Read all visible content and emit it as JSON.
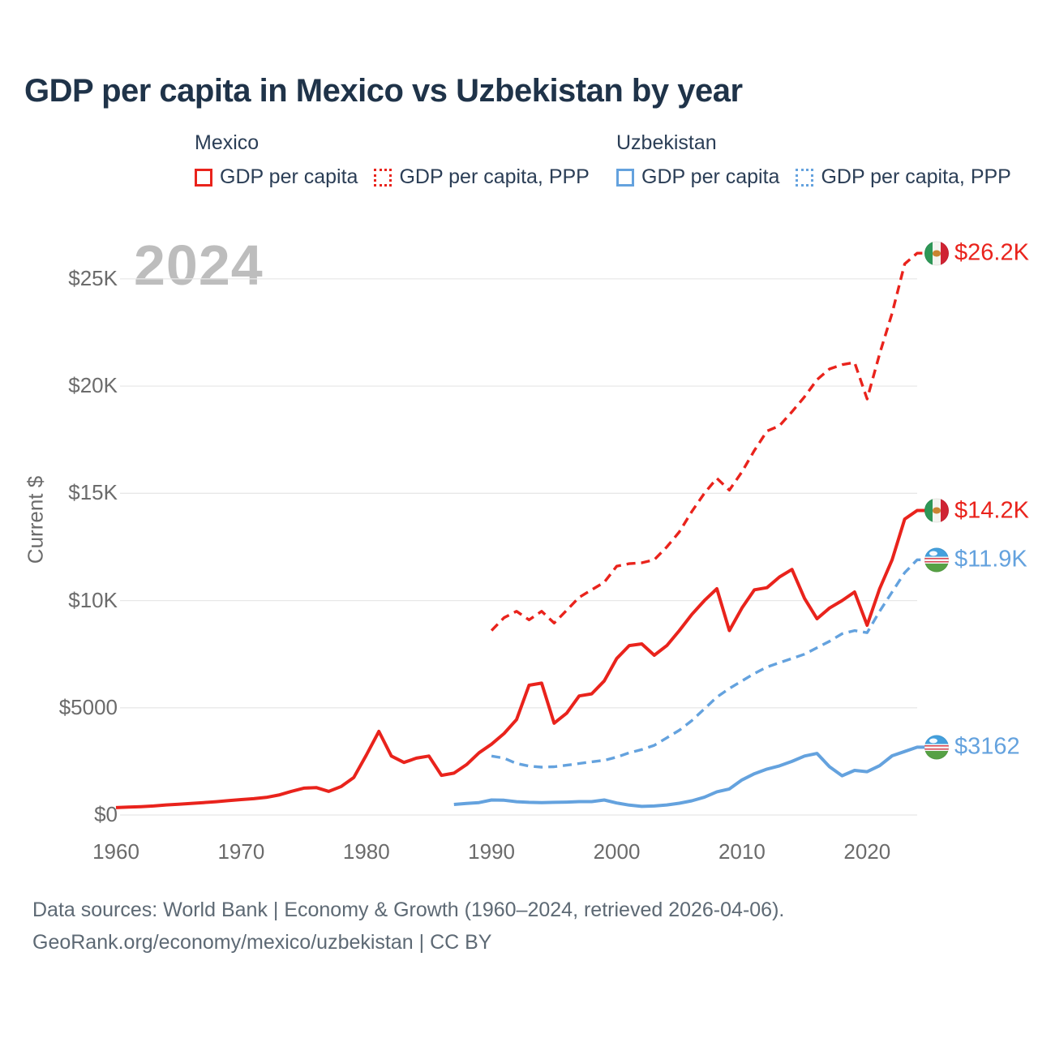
{
  "title": "GDP per capita in Mexico vs Uzbekistan by year",
  "watermark": "2024",
  "colors": {
    "mexico": "#e9231c",
    "uzbekistan": "#64a2de",
    "grid": "#e8e8e8",
    "title_text": "#1f3349",
    "legend_text": "#2b3e56",
    "axis_text": "#6b6b6b",
    "watermark_text": "#bdbdbd",
    "footer_text": "#5d6974"
  },
  "legend": {
    "groups": [
      {
        "title": "Mexico",
        "items": [
          {
            "label": "GDP per capita",
            "style": "solid",
            "color_key": "mexico"
          },
          {
            "label": "GDP per capita, PPP",
            "style": "dotted",
            "color_key": "mexico"
          }
        ]
      },
      {
        "title": "Uzbekistan",
        "items": [
          {
            "label": "GDP per capita",
            "style": "solid",
            "color_key": "uzbekistan"
          },
          {
            "label": "GDP per capita, PPP",
            "style": "dotted",
            "color_key": "uzbekistan"
          }
        ]
      }
    ]
  },
  "footer": {
    "line1": "Data sources: World Bank | Economy & Growth (1960–2024, retrieved 2026-04-06).",
    "line2": "GeoRank.org/economy/mexico/uzbekistan | CC BY"
  },
  "chart_data": {
    "type": "line",
    "title": "GDP per capita in Mexico vs Uzbekistan by year",
    "xlabel": "",
    "ylabel": "Current $",
    "xlim": [
      1958.5,
      2025.5
    ],
    "ylim": [
      0,
      27500
    ],
    "grid": "horizontal",
    "legend_position": "top",
    "x_ticks": [
      {
        "label": "1960",
        "value": 1960
      },
      {
        "label": "1970",
        "value": 1970
      },
      {
        "label": "1980",
        "value": 1980
      },
      {
        "label": "1990",
        "value": 1990
      },
      {
        "label": "2000",
        "value": 2000
      },
      {
        "label": "2010",
        "value": 2010
      },
      {
        "label": "2020",
        "value": 2020
      }
    ],
    "y_ticks": [
      {
        "label": "$25K",
        "value": 25000
      },
      {
        "label": "$20K",
        "value": 20000
      },
      {
        "label": "$15K",
        "value": 15000
      },
      {
        "label": "$10K",
        "value": 10000
      },
      {
        "label": "$5000",
        "value": 5000
      },
      {
        "label": "$0",
        "value": 0
      }
    ],
    "series": [
      {
        "name": "Mexico GDP per capita",
        "country": "Mexico",
        "measure": "GDP per capita (current $)",
        "color_key": "mexico",
        "dash": "solid",
        "year_start": 1960,
        "values": [
          345,
          370,
          390,
          420,
          470,
          500,
          540,
          580,
          620,
          670,
          720,
          760,
          820,
          930,
          1100,
          1250,
          1280,
          1100,
          1330,
          1750,
          2800,
          3900,
          2750,
          2450,
          2650,
          2750,
          1850,
          1950,
          2350,
          2900,
          3300,
          3800,
          4450,
          6050,
          6150,
          4280,
          4750,
          5550,
          5650,
          6250,
          7300,
          7900,
          7980,
          7450,
          7900,
          8600,
          9350,
          10000,
          10550,
          8600,
          9650,
          10500,
          10600,
          11100,
          11450,
          10100,
          9150,
          9650,
          10000,
          10400,
          8850,
          10550,
          11900,
          13800,
          14200
        ]
      },
      {
        "name": "Mexico GDP per capita, PPP",
        "country": "Mexico",
        "measure": "GDP per capita, PPP (current international $)",
        "color_key": "mexico",
        "dash": "dashed",
        "year_start": 1990,
        "values": [
          8600,
          9200,
          9500,
          9100,
          9500,
          8950,
          9550,
          10150,
          10500,
          10850,
          11600,
          11720,
          11760,
          11900,
          12500,
          13200,
          14150,
          15000,
          15700,
          15150,
          16000,
          17000,
          17900,
          18150,
          18800,
          19500,
          20300,
          20800,
          21000,
          21100,
          19400,
          21500,
          23400,
          25700,
          26200
        ]
      },
      {
        "name": "Uzbekistan GDP per capita",
        "country": "Uzbekistan",
        "measure": "GDP per capita (current $)",
        "color_key": "uzbekistan",
        "dash": "solid",
        "year_start": 1987,
        "values": [
          490,
          540,
          580,
          700,
          690,
          620,
          590,
          575,
          590,
          600,
          625,
          625,
          700,
          560,
          460,
          400,
          420,
          470,
          550,
          660,
          830,
          1080,
          1215,
          1635,
          1925,
          2140,
          2290,
          2500,
          2750,
          2870,
          2250,
          1830,
          2080,
          2020,
          2300,
          2760,
          2960,
          3162
        ]
      },
      {
        "name": "Uzbekistan GDP per capita, PPP",
        "country": "Uzbekistan",
        "measure": "GDP per capita, PPP (current international $)",
        "color_key": "uzbekistan",
        "dash": "dashed",
        "year_start": 1990,
        "values": [
          2750,
          2650,
          2400,
          2280,
          2230,
          2250,
          2320,
          2400,
          2480,
          2550,
          2700,
          2900,
          3050,
          3250,
          3600,
          3950,
          4400,
          4950,
          5500,
          5900,
          6250,
          6600,
          6900,
          7100,
          7300,
          7500,
          7800,
          8100,
          8450,
          8600,
          8500,
          9500,
          10400,
          11300,
          11900
        ]
      }
    ],
    "end_labels": [
      {
        "text": "$26.2K",
        "value": 26200,
        "flag": "mexico",
        "series": "Mexico GDP per capita, PPP"
      },
      {
        "text": "$14.2K",
        "value": 14200,
        "flag": "mexico",
        "series": "Mexico GDP per capita"
      },
      {
        "text": "$11.9K",
        "value": 11900,
        "flag": "uzbekistan",
        "series": "Uzbekistan GDP per capita, PPP"
      },
      {
        "text": "$3162",
        "value": 3162,
        "flag": "uzbekistan",
        "series": "Uzbekistan GDP per capita"
      }
    ]
  }
}
